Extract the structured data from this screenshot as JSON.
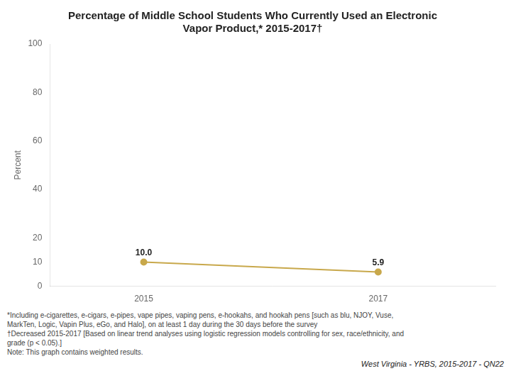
{
  "chart_data": {
    "type": "line",
    "title": [
      "Percentage of Middle School Students Who Currently Used an Electronic",
      "Vapor Product,* 2015-2017†"
    ],
    "ylabel": "Percent",
    "x": [
      2015,
      2017
    ],
    "values": [
      10.0,
      5.9
    ],
    "value_labels": [
      "10.0",
      "5.9"
    ],
    "data_labels": true,
    "color": "#C8A84B",
    "marker": "circle",
    "xlim": [
      2014.2,
      2018.0
    ],
    "xticks": [
      2015,
      2017
    ],
    "ylim": [
      0,
      100
    ],
    "yticks": [
      0,
      10,
      20,
      40,
      60,
      80,
      100
    ],
    "grid": false,
    "annotations": [
      "*Including e-cigarettes, e-cigars, e-pipes, vape pipes, vaping pens, e-hookahs, and hookah pens [such as blu, NJOY, Vuse,",
      "MarkTen, Logic, Vapin Plus, eGo, and Halo], on at least 1 day during the 30 days before the survey",
      "†Decreased 2015-2017 [Based on linear trend analyses using logistic regression models controlling for sex, race/ethnicity, and",
      "grade (p < 0.05).]",
      "Note: This graph contains weighted results.",
      "West Virginia - YRBS, 2015-2017 - QN22"
    ]
  }
}
